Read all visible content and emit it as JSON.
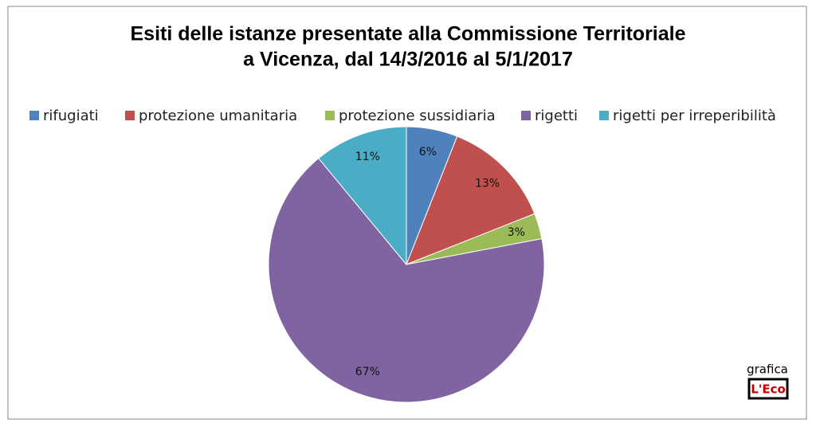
{
  "chart_data": {
    "type": "pie",
    "title": [
      "Esiti delle istanze presentate alla Commissione Territoriale",
      "a Vicenza, dal 14/3/2016 al 5/1/2017"
    ],
    "categories": [
      "rifugiati",
      "protezione umanitaria",
      "protezione sussidiaria",
      "rigetti",
      "rigetti per irreperibilità"
    ],
    "values": [
      6,
      13,
      3,
      67,
      11
    ],
    "value_labels": [
      "6%",
      "13%",
      "3%",
      "67%",
      "11%"
    ],
    "colors": [
      "#4f81bd",
      "#c0504d",
      "#9bbb59",
      "#8064a2",
      "#4bacc6"
    ],
    "legend": "top",
    "credit": [
      "grafica",
      "L'Eco"
    ]
  }
}
